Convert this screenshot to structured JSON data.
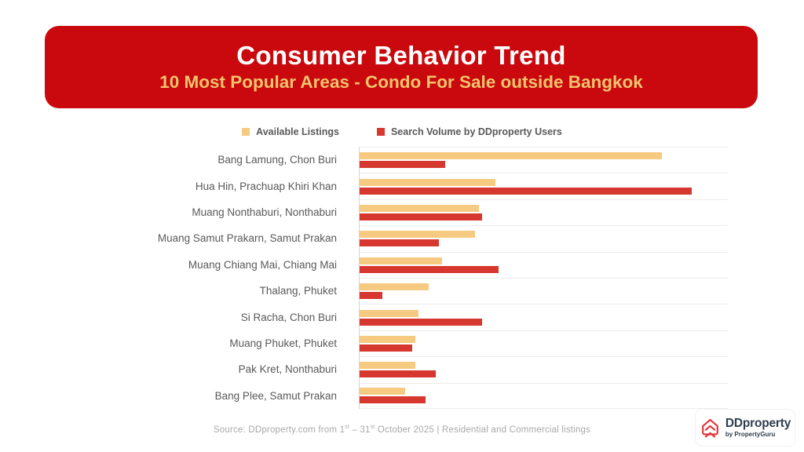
{
  "header": {
    "title": "Consumer Behavior Trend",
    "subtitle": "10 Most Popular Areas - Condo For Sale outside Bangkok"
  },
  "chart_data": {
    "type": "bar",
    "orientation": "horizontal",
    "title": "10 Most Popular Areas - Condo For Sale outside Bangkok",
    "categories": [
      "Bang Lamung, Chon Buri",
      "Hua Hin, Prachuap Khiri Khan",
      "Muang Nonthaburi, Nonthaburi",
      "Muang Samut Prakarn, Samut Prakan",
      "Muang Chiang Mai, Chiang Mai",
      "Thalang, Phuket",
      "Si Racha, Chon Buri",
      "Muang Phuket, Phuket",
      "Pak Kret, Nonthaburi",
      "Bang Plee, Samut Prakan"
    ],
    "series": [
      {
        "name": "Available Listings",
        "values": [
          91,
          41,
          36,
          35,
          25,
          21,
          18,
          17,
          17,
          14
        ]
      },
      {
        "name": "Search Volume by DDproperty Users",
        "values": [
          26,
          100,
          37,
          24,
          42,
          7,
          37,
          16,
          23,
          20
        ]
      }
    ],
    "value_axis_note": "no numeric axis shown; values are relative lengths, % of longest bar",
    "xlim": [
      0,
      100
    ],
    "legend_position": "top",
    "grid": "faint horizontal row separators only"
  },
  "footer": {
    "prefix": "Source: DDproperty.com from 1",
    "sup_a": "st",
    "mid": " – 31",
    "sup_b": "st",
    "suffix": " October 2025 | Residential and Commercial listings"
  },
  "logo": {
    "brand": "DDproperty",
    "byline": "by PropertyGuru"
  },
  "colors": {
    "header_bg": "#C9090D",
    "subtitle_gold": "#F2C46E",
    "bar_yellow": "#F7CA82",
    "bar_red": "#D6372E",
    "label_gray": "#595959",
    "footer_gray": "#A9A9A9",
    "logo_navy": "#2F3E4E",
    "logo_red": "#E0383C"
  }
}
